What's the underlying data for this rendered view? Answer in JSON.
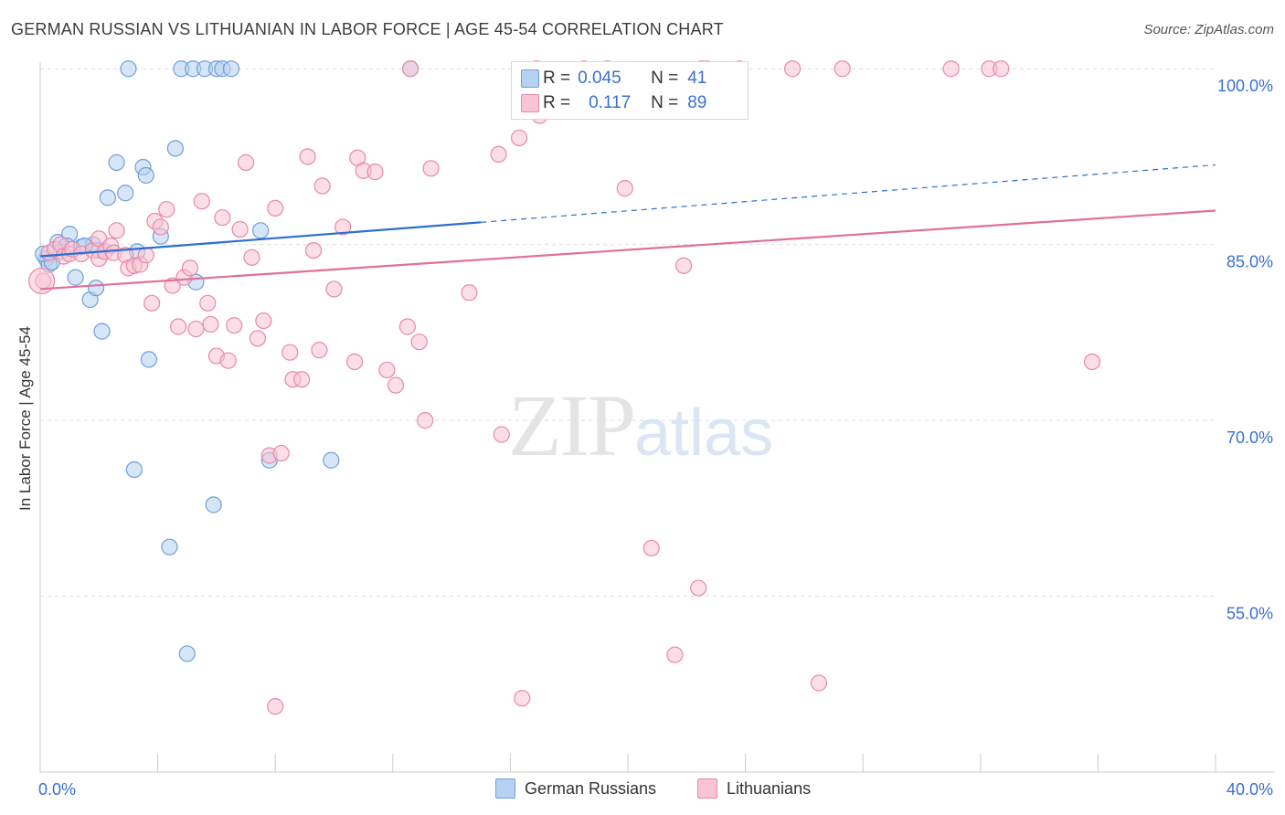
{
  "header": {
    "title": "GERMAN RUSSIAN VS LITHUANIAN IN LABOR FORCE | AGE 45-54 CORRELATION CHART",
    "source": "Source: ZipAtlas.com"
  },
  "watermark": {
    "zip": "ZIP",
    "atlas": "atlas"
  },
  "legend": {
    "series1": {
      "r_label": "R =",
      "r_value": "0.045",
      "n_label": "N =",
      "n_value": "41"
    },
    "series2": {
      "r_label": "R =",
      "r_value": "0.117",
      "n_label": "N =",
      "n_value": "89"
    }
  },
  "bottom_legend": {
    "series1": "German Russians",
    "series2": "Lithuanians"
  },
  "colors": {
    "blue_fill": "#b7d1f0",
    "blue_stroke": "#6f9fd9",
    "blue_line": "#2d6fcf",
    "pink_fill": "#f8c3d4",
    "pink_stroke": "#e889a8",
    "pink_line": "#e0709a",
    "tick_text": "#3c6fd0",
    "grid": "#dddddd"
  },
  "chart_data": {
    "type": "scatter",
    "title": "GERMAN RUSSIAN VS LITHUANIAN IN LABOR FORCE | AGE 45-54 CORRELATION CHART",
    "xlabel": "",
    "ylabel": "In Labor Force | Age 45-54",
    "xlim": [
      0,
      40
    ],
    "ylim": [
      40,
      101.5
    ],
    "x_tick_labels": [
      {
        "value": 0,
        "label": "0.0%"
      },
      {
        "value": 40,
        "label": "40.0%"
      }
    ],
    "y_tick_labels": [
      {
        "value": 100,
        "label": "100.0%"
      },
      {
        "value": 85,
        "label": "85.0%"
      },
      {
        "value": 70,
        "label": "70.0%"
      },
      {
        "value": 55,
        "label": "55.0%"
      }
    ],
    "grid": true,
    "series": [
      {
        "name": "German Russians",
        "r": 0.045,
        "n": 41,
        "trend": {
          "x0": 0,
          "y0": 84.0,
          "x1": 15.0,
          "y1": 86.9,
          "dash_to_x": 40,
          "dash_to_y": 91.8
        },
        "points": [
          [
            0.2,
            83.8
          ],
          [
            0.3,
            83.3
          ],
          [
            0.4,
            83.5
          ],
          [
            0.6,
            85.2
          ],
          [
            0.7,
            84.4
          ],
          [
            1.0,
            85.9
          ],
          [
            1.2,
            82.2
          ],
          [
            1.4,
            84.8
          ],
          [
            1.7,
            80.3
          ],
          [
            1.8,
            85.0
          ],
          [
            1.9,
            81.3
          ],
          [
            2.1,
            77.6
          ],
          [
            2.3,
            89.0
          ],
          [
            2.6,
            92.0
          ],
          [
            2.9,
            89.4
          ],
          [
            3.0,
            100.0
          ],
          [
            3.2,
            65.8
          ],
          [
            3.3,
            84.4
          ],
          [
            3.5,
            91.6
          ],
          [
            3.6,
            90.9
          ],
          [
            3.7,
            75.2
          ],
          [
            4.1,
            85.7
          ],
          [
            4.4,
            59.2
          ],
          [
            4.6,
            93.2
          ],
          [
            4.8,
            100.0
          ],
          [
            5.0,
            50.1
          ],
          [
            5.2,
            100.0
          ],
          [
            5.3,
            81.8
          ],
          [
            5.6,
            100.0
          ],
          [
            5.9,
            62.8
          ],
          [
            6.0,
            100.0
          ],
          [
            6.2,
            100.0
          ],
          [
            6.5,
            100.0
          ],
          [
            7.5,
            86.2
          ],
          [
            7.8,
            66.6
          ],
          [
            9.9,
            66.6
          ],
          [
            12.6,
            100.0
          ],
          [
            0.1,
            84.2
          ],
          [
            1.5,
            84.9
          ],
          [
            2.0,
            84.5
          ],
          [
            0.9,
            84.9
          ]
        ]
      },
      {
        "name": "Lithuanians",
        "r": 0.117,
        "n": 89,
        "trend": {
          "x0": 0,
          "y0": 81.2,
          "x1": 40,
          "y1": 87.9
        },
        "points": [
          [
            0.1,
            81.9
          ],
          [
            0.3,
            84.3
          ],
          [
            0.5,
            84.6
          ],
          [
            0.7,
            85.0
          ],
          [
            0.8,
            84.0
          ],
          [
            1.0,
            84.2
          ],
          [
            1.1,
            84.6
          ],
          [
            1.4,
            84.2
          ],
          [
            1.8,
            84.5
          ],
          [
            2.0,
            85.5
          ],
          [
            2.0,
            83.8
          ],
          [
            2.2,
            84.4
          ],
          [
            2.4,
            84.9
          ],
          [
            2.5,
            84.3
          ],
          [
            2.6,
            86.2
          ],
          [
            2.9,
            84.1
          ],
          [
            3.0,
            83.0
          ],
          [
            3.2,
            83.2
          ],
          [
            3.4,
            83.3
          ],
          [
            3.6,
            84.1
          ],
          [
            3.8,
            80.0
          ],
          [
            3.9,
            87.0
          ],
          [
            4.1,
            86.5
          ],
          [
            4.3,
            88.0
          ],
          [
            4.5,
            81.5
          ],
          [
            4.7,
            78.0
          ],
          [
            4.9,
            82.2
          ],
          [
            5.1,
            83.0
          ],
          [
            5.3,
            77.8
          ],
          [
            5.5,
            88.7
          ],
          [
            5.7,
            80.0
          ],
          [
            5.8,
            78.2
          ],
          [
            6.0,
            75.5
          ],
          [
            6.2,
            87.3
          ],
          [
            6.4,
            75.1
          ],
          [
            6.6,
            78.1
          ],
          [
            6.8,
            86.3
          ],
          [
            7.0,
            92.0
          ],
          [
            7.2,
            83.9
          ],
          [
            7.4,
            77.0
          ],
          [
            7.6,
            78.5
          ],
          [
            7.8,
            67.0
          ],
          [
            8.0,
            88.1
          ],
          [
            8.2,
            67.2
          ],
          [
            8.5,
            75.8
          ],
          [
            8.6,
            73.5
          ],
          [
            8.9,
            73.5
          ],
          [
            9.1,
            92.5
          ],
          [
            9.3,
            84.5
          ],
          [
            9.5,
            76.0
          ],
          [
            9.6,
            90.0
          ],
          [
            10.0,
            81.2
          ],
          [
            10.3,
            86.5
          ],
          [
            10.7,
            75.0
          ],
          [
            10.8,
            92.4
          ],
          [
            11.0,
            91.3
          ],
          [
            11.4,
            91.2
          ],
          [
            11.8,
            74.3
          ],
          [
            12.1,
            73.0
          ],
          [
            12.5,
            78.0
          ],
          [
            12.9,
            76.7
          ],
          [
            13.1,
            70.0
          ],
          [
            13.3,
            91.5
          ],
          [
            8.0,
            45.6
          ],
          [
            14.6,
            80.9
          ],
          [
            15.6,
            92.7
          ],
          [
            15.7,
            68.8
          ],
          [
            16.3,
            94.1
          ],
          [
            16.4,
            46.3
          ],
          [
            16.9,
            100.0
          ],
          [
            17.0,
            96.0
          ],
          [
            19.3,
            100.0
          ],
          [
            19.9,
            89.8
          ],
          [
            20.8,
            59.1
          ],
          [
            21.6,
            50.0
          ],
          [
            21.9,
            83.2
          ],
          [
            22.4,
            55.7
          ],
          [
            22.7,
            100.0
          ],
          [
            23.8,
            100.0
          ],
          [
            25.6,
            100.0
          ],
          [
            26.5,
            47.6
          ],
          [
            27.3,
            100.0
          ],
          [
            31.0,
            100.0
          ],
          [
            32.3,
            100.0
          ],
          [
            32.7,
            100.0
          ],
          [
            35.8,
            75.0
          ],
          [
            12.6,
            100.0
          ],
          [
            22.5,
            100.0
          ],
          [
            18.5,
            100.0
          ]
        ]
      }
    ]
  }
}
